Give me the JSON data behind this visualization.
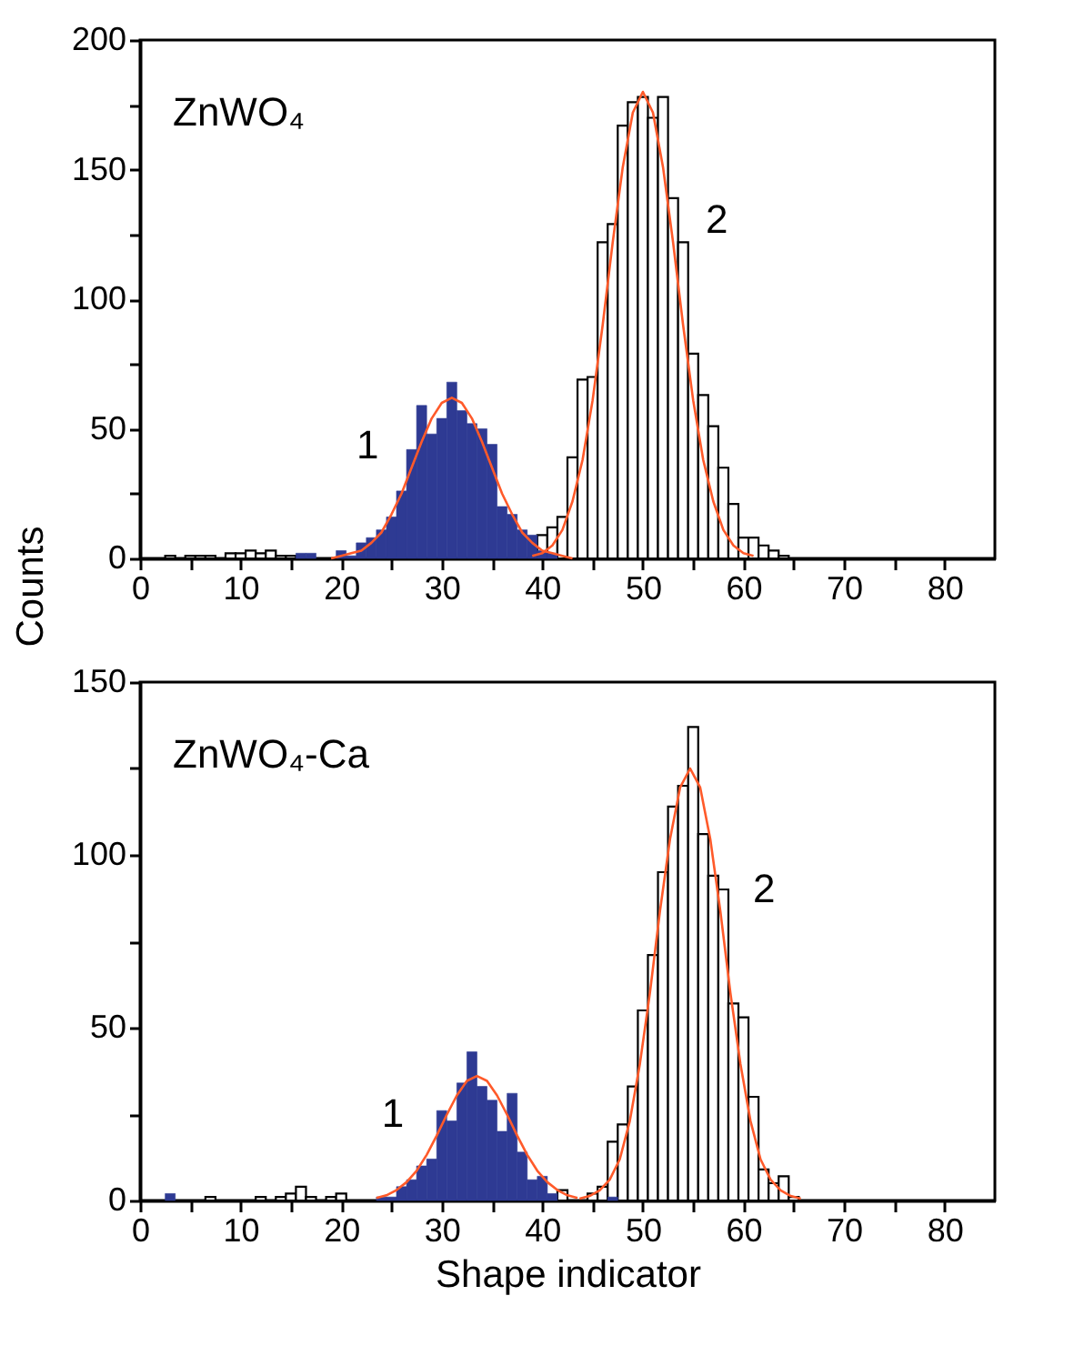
{
  "chart_data": [
    {
      "type": "histogram",
      "ylabel": "Counts",
      "xlim": [
        0,
        85
      ],
      "ylim": [
        0,
        200
      ],
      "xticks": [
        0,
        {
          "value": 5,
          "label": null
        },
        10,
        {
          "value": 15,
          "label": null
        },
        20,
        {
          "value": 25,
          "label": null
        },
        30,
        {
          "value": 35,
          "label": null
        },
        40,
        {
          "value": 45,
          "label": null
        },
        50,
        {
          "value": 55,
          "label": null
        },
        60,
        {
          "value": 65,
          "label": null
        },
        70,
        {
          "value": 75,
          "label": null
        },
        80
      ],
      "yticks": [
        0,
        {
          "value": 25,
          "label": null
        },
        50,
        {
          "value": 75,
          "label": null
        },
        100,
        {
          "value": 125,
          "label": null
        },
        150,
        {
          "value": 175,
          "label": null
        },
        200
      ],
      "annotations": [
        "ZnWO₄",
        {
          "text": "1",
          "x": 27,
          "y": 35
        },
        {
          "text": "2",
          "x": 53,
          "y": 122
        }
      ],
      "series": [
        {
          "type": "histogram",
          "color": "#ffffff",
          "bins": [
            2.5,
            3.5,
            4.5,
            5.5,
            6.5,
            7.5,
            8.5,
            9.5,
            10.5,
            11.5,
            12.5,
            13.5,
            14.5,
            15.5,
            16.5,
            17.5,
            18.5,
            19.5,
            20.5,
            21.5,
            22.5,
            23.5,
            24.5,
            25.5,
            26.5,
            27.5,
            28.5,
            29.5,
            30.5,
            31.5,
            32.5,
            33.5,
            34.5,
            35.5,
            36.5,
            37.5,
            38.5,
            39.5,
            40.5,
            41.5,
            42.5,
            43.5,
            44.5,
            45.5,
            46.5,
            47.5,
            48.5,
            49.5,
            50.5,
            51.5,
            52.5,
            53.5,
            54.5,
            55.5,
            56.5,
            57.5,
            58.5,
            59.5,
            60.5,
            61.5,
            62.5,
            63.5,
            64.5
          ],
          "values": [
            1,
            0,
            1,
            1,
            1,
            0,
            2,
            2,
            3,
            2,
            3,
            1,
            1,
            0,
            0,
            0,
            0,
            0,
            0,
            0,
            0,
            0,
            0,
            0,
            0,
            0,
            0,
            0,
            0,
            0,
            0,
            0,
            0,
            0,
            0,
            0,
            0,
            9,
            12,
            16,
            39,
            69,
            70,
            122,
            129,
            167,
            176,
            178,
            170,
            178,
            139,
            122,
            79,
            63,
            51,
            35,
            21,
            8,
            8,
            5,
            3,
            1
          ]
        },
        {
          "type": "histogram",
          "color": "#2e3a93",
          "bins": [
            15.5,
            16.5,
            17.5,
            18.5,
            19.5,
            20.5,
            21.5,
            22.5,
            23.5,
            24.5,
            25.5,
            26.5,
            27.5,
            28.5,
            29.5,
            30.5,
            31.5,
            32.5,
            33.5,
            34.5,
            35.5,
            36.5,
            37.5,
            38.5,
            39.5,
            40.5,
            41.5
          ],
          "values": [
            2,
            2,
            0,
            0,
            3,
            1,
            6,
            8,
            11,
            16,
            26,
            42,
            59,
            48,
            54,
            68,
            57,
            52,
            50,
            44,
            20,
            17,
            11,
            9,
            3,
            2
          ]
        },
        {
          "type": "line",
          "color": "#ff5a2a",
          "x": [
            19,
            20,
            21,
            22,
            23,
            24,
            25,
            26,
            27,
            28,
            29,
            30,
            31,
            32,
            33,
            34,
            35,
            36,
            37,
            38,
            39,
            40,
            41,
            42,
            43
          ],
          "values": [
            0,
            1,
            2,
            3,
            6,
            10,
            17,
            25,
            35,
            45,
            54,
            60,
            62,
            60,
            54,
            45,
            35,
            25,
            17,
            10,
            6,
            3,
            2,
            1,
            0
          ]
        },
        {
          "type": "line",
          "color": "#ff5a2a",
          "x": [
            39,
            40,
            41,
            42,
            43,
            44,
            45,
            46,
            47,
            48,
            49,
            50,
            51,
            52,
            53,
            54,
            55,
            56,
            57,
            58,
            59,
            60,
            61
          ],
          "values": [
            1,
            2,
            5,
            11,
            22,
            38,
            61,
            90,
            122,
            151,
            172,
            180,
            172,
            151,
            122,
            90,
            61,
            38,
            22,
            11,
            5,
            2,
            1
          ]
        }
      ]
    },
    {
      "type": "histogram",
      "xlabel": "Shape indicator",
      "xlim": [
        0,
        85
      ],
      "ylim": [
        0,
        150
      ],
      "xticks": [
        0,
        {
          "value": 5,
          "label": null
        },
        10,
        {
          "value": 15,
          "label": null
        },
        20,
        {
          "value": 25,
          "label": null
        },
        30,
        {
          "value": 35,
          "label": null
        },
        40,
        {
          "value": 45,
          "label": null
        },
        50,
        {
          "value": 55,
          "label": null
        },
        60,
        {
          "value": 65,
          "label": null
        },
        70,
        {
          "value": 75,
          "label": null
        },
        80
      ],
      "yticks": [
        0,
        {
          "value": 25,
          "label": null
        },
        50,
        {
          "value": 75,
          "label": null
        },
        100,
        {
          "value": 125,
          "label": null
        },
        150
      ],
      "annotations": [
        "ZnWO₄-Ca",
        {
          "text": "1",
          "x": 29.5,
          "y": 18.8
        },
        {
          "text": "2",
          "x": 57.7,
          "y": 83.8
        }
      ],
      "series": [
        {
          "type": "histogram",
          "color": "#ffffff",
          "bins": [
            6.5,
            7.5,
            8.5,
            9.5,
            10.5,
            11.5,
            12.5,
            13.5,
            14.5,
            15.5,
            16.5,
            17.5,
            18.5,
            19.5,
            20.5,
            21.5,
            22.5,
            23.5,
            24.5,
            25.5,
            26.5,
            27.5,
            28.5,
            29.5,
            30.5,
            31.5,
            32.5,
            33.5,
            34.5,
            35.5,
            36.5,
            37.5,
            38.5,
            39.5,
            40.5,
            41.5,
            42.5,
            43.5,
            44.5,
            45.5,
            46.5,
            47.5,
            48.5,
            49.5,
            50.5,
            51.5,
            52.5,
            53.5,
            54.5,
            55.5,
            56.5,
            57.5,
            58.5,
            59.5,
            60.5,
            61.5,
            62.5,
            63.5,
            64.5,
            65.5
          ],
          "values": [
            1,
            0,
            0,
            0,
            0,
            1,
            0,
            1,
            2,
            4,
            1,
            0,
            1,
            2,
            0,
            0,
            0,
            0,
            0,
            0,
            0,
            0,
            0,
            0,
            0,
            0,
            0,
            0,
            0,
            0,
            0,
            0,
            0,
            0,
            0,
            3,
            0,
            0,
            2,
            4,
            17,
            22,
            33,
            55,
            71,
            95,
            114,
            120,
            137,
            106,
            94,
            90,
            57,
            53,
            30,
            9,
            5,
            7,
            1
          ]
        },
        {
          "type": "histogram",
          "color": "#2e3a93",
          "bins": [
            2.5,
            3.5,
            4.5,
            5.5,
            6.5,
            7.5,
            8.5,
            9.5,
            10.5,
            11.5,
            12.5,
            13.5,
            14.5,
            15.5,
            16.5,
            17.5,
            18.5,
            19.5,
            20.5,
            21.5,
            22.5,
            23.5,
            24.5,
            25.5,
            26.5,
            27.5,
            28.5,
            29.5,
            30.5,
            31.5,
            32.5,
            33.5,
            34.5,
            35.5,
            36.5,
            37.5,
            38.5,
            39.5,
            40.5,
            41.5,
            42.5,
            43.5,
            44.5,
            45.5,
            46.5,
            47.5
          ],
          "values": [
            2,
            0,
            0,
            0,
            0,
            0,
            0,
            0,
            0,
            0,
            0,
            0,
            0,
            0,
            0,
            0,
            0,
            0,
            0,
            0,
            0,
            1,
            1,
            4,
            6,
            10,
            12,
            26,
            23,
            34,
            43,
            33,
            29,
            20,
            31,
            14,
            6,
            7,
            2,
            0,
            0,
            0,
            0,
            0,
            1
          ]
        },
        {
          "type": "line",
          "color": "#ff5a2a",
          "x": [
            23.5,
            24.5,
            25.5,
            26.5,
            27.5,
            28.5,
            29.5,
            30.5,
            31.5,
            32.5,
            33.5,
            34.5,
            35.5,
            36.5,
            37.5,
            38.5,
            39.5,
            40.5,
            41.5,
            42.5,
            43.5
          ],
          "values": [
            0.7,
            1.5,
            3,
            5.3,
            8.6,
            13.2,
            18.8,
            24.8,
            30.4,
            34.6,
            36,
            34.6,
            30.4,
            24.8,
            18.8,
            13.2,
            8.6,
            5.3,
            3,
            1.5,
            0.7
          ]
        },
        {
          "type": "line",
          "color": "#ff5a2a",
          "x": [
            43.7,
            44.7,
            45.7,
            46.7,
            47.7,
            48.7,
            49.7,
            50.7,
            51.7,
            52.7,
            53.7,
            54.7,
            55.7,
            56.7,
            57.7,
            58.7,
            59.7,
            60.7,
            61.7,
            62.7,
            63.7,
            64.7,
            65.7
          ],
          "values": [
            0.5,
            1.3,
            2.9,
            6,
            11.9,
            23,
            39.5,
            60.1,
            83.8,
            104.6,
            119.5,
            125,
            119.5,
            104.6,
            83.8,
            60.1,
            39.5,
            23,
            11.9,
            6,
            2.9,
            1.3,
            0.5
          ]
        }
      ]
    }
  ]
}
